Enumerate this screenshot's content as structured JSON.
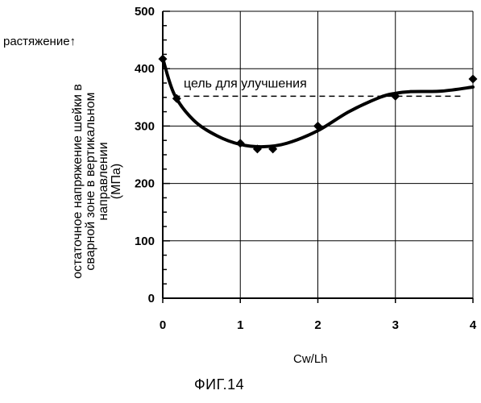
{
  "chart_data": {
    "type": "scatter",
    "tension_label": "растяжение↑",
    "ylabel_lines": [
      "остаточное напряжение шейки в",
      "сварной зоне в вертикальном",
      "направлении",
      "(МПа)"
    ],
    "xlabel": "Cw/Lh",
    "caption": "ФИГ.14",
    "xlim": [
      0,
      4
    ],
    "ylim": [
      0,
      500
    ],
    "x_ticks": [
      0,
      1,
      2,
      3,
      4
    ],
    "y_ticks": [
      0,
      100,
      200,
      300,
      400,
      500
    ],
    "grid": true,
    "series": [
      {
        "marker": "diamond",
        "x": [
          0,
          0.18,
          1.0,
          1.22,
          1.42,
          2.0,
          3.0,
          4.0
        ],
        "y": [
          417,
          348,
          270,
          260,
          260,
          300,
          352,
          382
        ]
      }
    ],
    "trend_curve": {
      "x": [
        0,
        0.15,
        0.4,
        0.7,
        1.0,
        1.3,
        1.6,
        2.0,
        2.4,
        2.8,
        3.0,
        3.2,
        3.6,
        4.0
      ],
      "y": [
        418,
        355,
        310,
        283,
        268,
        264,
        270,
        292,
        325,
        350,
        357,
        360,
        361,
        368
      ]
    },
    "target": {
      "label": "цель для улучшения",
      "y": 352,
      "x_start": 0.15,
      "x_end": 3.85
    }
  }
}
